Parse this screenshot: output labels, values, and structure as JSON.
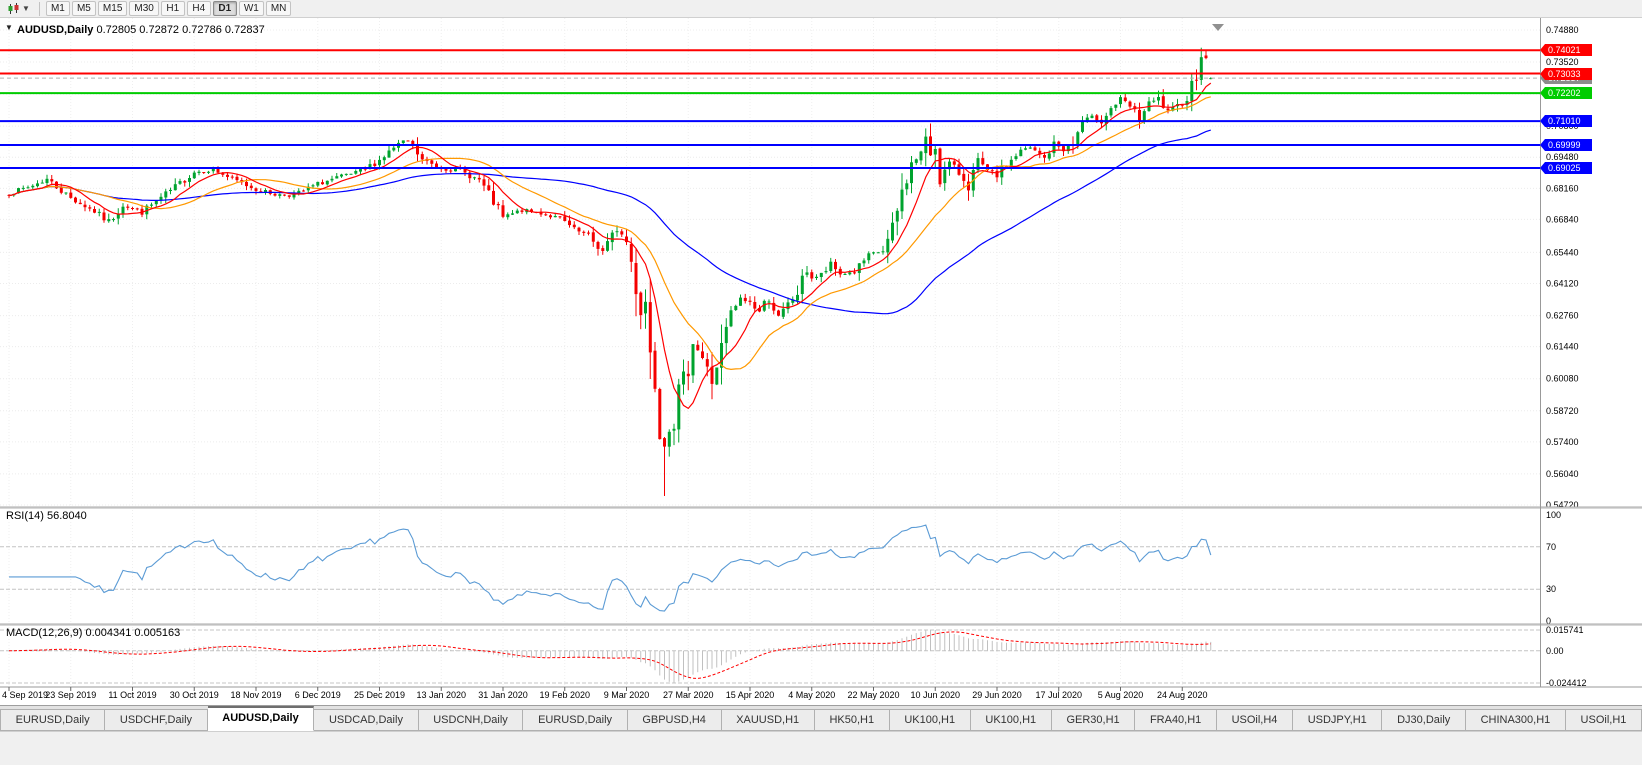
{
  "toolbar": {
    "timeframes": [
      "M1",
      "M5",
      "M15",
      "M30",
      "H1",
      "H4",
      "D1",
      "W1",
      "MN"
    ],
    "active": "D1"
  },
  "price_panel": {
    "symbol": "AUDUSD,Daily",
    "ohlc": "0.72805 0.72872 0.72786 0.72837"
  },
  "rsi_panel": {
    "label": "RSI(14) 56.8040"
  },
  "macd_panel": {
    "label": "MACD(12,26,9) 0.004341 0.005163"
  },
  "tabs": [
    "EURUSD,Daily",
    "USDCHF,Daily",
    "AUDUSD,Daily",
    "USDCAD,Daily",
    "USDCNH,Daily",
    "EURUSD,Daily",
    "GBPUSD,H4",
    "XAUUSD,H1",
    "HK50,H1",
    "UK100,H1",
    "UK100,H1",
    "GER30,H1",
    "FRA40,H1",
    "USOil,H4",
    "USDJPY,H1",
    "DJ30,Daily",
    "CHINA300,H1",
    "USOil,H1"
  ],
  "active_tab_index": 2,
  "chart_data": {
    "type": "candlestick",
    "title": "AUDUSD,Daily",
    "last_ohlc": [
      0.72805,
      0.72872,
      0.72786,
      0.72837
    ],
    "price_axis": {
      "min": 0.5472,
      "max": 0.7488,
      "ticks": [
        "0.74880",
        "0.73520",
        "0.72160",
        "0.70800",
        "0.69480",
        "0.68160",
        "0.66840",
        "0.65440",
        "0.64120",
        "0.62760",
        "0.61440",
        "0.60080",
        "0.58720",
        "0.57400",
        "0.56040",
        "0.54720"
      ]
    },
    "date_labels": [
      "4 Sep 2019",
      "23 Sep 2019",
      "11 Oct 2019",
      "30 Oct 2019",
      "18 Nov 2019",
      "6 Dec 2019",
      "25 Dec 2019",
      "13 Jan 2020",
      "31 Jan 2020",
      "19 Feb 2020",
      "9 Mar 2020",
      "27 Mar 2020",
      "15 Apr 2020",
      "4 May 2020",
      "22 May 2020",
      "10 Jun 2020",
      "29 Jun 2020",
      "17 Jul 2020",
      "5 Aug 2020",
      "24 Aug 2020"
    ],
    "candles_per_label": 13,
    "num_candles": 254,
    "seed": 7,
    "extreme_low": 0.551,
    "extreme_high": 0.7413,
    "hlines": [
      {
        "price": 0.74021,
        "label": "0.74021",
        "color": "#FF0000"
      },
      {
        "price": 0.73033,
        "label": "0.73033",
        "color": "#FF0000"
      },
      {
        "price": 0.72202,
        "label": "0.72202",
        "color": "#00CC00"
      },
      {
        "price": 0.7101,
        "label": "0.71010",
        "color": "#0000FF"
      },
      {
        "price": 0.69999,
        "label": "0.69999",
        "color": "#0000FF"
      },
      {
        "price": 0.69025,
        "label": "0.69025",
        "color": "#0000FF"
      }
    ],
    "bid": {
      "price": 0.72837,
      "label": "0.72837"
    },
    "price_path": [
      [
        0,
        0.6795
      ],
      [
        4,
        0.682
      ],
      [
        8,
        0.6855
      ],
      [
        13,
        0.6775
      ],
      [
        18,
        0.6718
      ],
      [
        21,
        0.6672
      ],
      [
        24,
        0.6745
      ],
      [
        28,
        0.6716
      ],
      [
        33,
        0.679
      ],
      [
        39,
        0.6885
      ],
      [
        43,
        0.6896
      ],
      [
        47,
        0.6855
      ],
      [
        52,
        0.6812
      ],
      [
        56,
        0.679
      ],
      [
        60,
        0.6786
      ],
      [
        65,
        0.6835
      ],
      [
        70,
        0.6866
      ],
      [
        74,
        0.6886
      ],
      [
        78,
        0.6936
      ],
      [
        82,
        0.7004
      ],
      [
        84,
        0.7016
      ],
      [
        87,
        0.6936
      ],
      [
        91,
        0.6902
      ],
      [
        95,
        0.689
      ],
      [
        99,
        0.685
      ],
      [
        102,
        0.6756
      ],
      [
        104,
        0.6692
      ],
      [
        108,
        0.6722
      ],
      [
        112,
        0.6712
      ],
      [
        116,
        0.6686
      ],
      [
        119,
        0.664
      ],
      [
        122,
        0.6612
      ],
      [
        125,
        0.6546
      ],
      [
        128,
        0.6646
      ],
      [
        130,
        0.659
      ],
      [
        131,
        0.6502
      ],
      [
        133,
        0.6292
      ],
      [
        134,
        0.634
      ],
      [
        135,
        0.6122
      ],
      [
        136,
        0.5996
      ],
      [
        137,
        0.5772
      ],
      [
        138,
        0.5742
      ],
      [
        139,
        0.5802
      ],
      [
        140,
        0.5832
      ],
      [
        141,
        0.5962
      ],
      [
        143,
        0.606
      ],
      [
        144,
        0.617
      ],
      [
        146,
        0.6096
      ],
      [
        148,
        0.5996
      ],
      [
        150,
        0.6136
      ],
      [
        152,
        0.6286
      ],
      [
        154,
        0.6346
      ],
      [
        156,
        0.6332
      ],
      [
        158,
        0.6292
      ],
      [
        160,
        0.636
      ],
      [
        162,
        0.6262
      ],
      [
        164,
        0.6322
      ],
      [
        166,
        0.6372
      ],
      [
        168,
        0.647
      ],
      [
        169,
        0.6436
      ],
      [
        171,
        0.6446
      ],
      [
        173,
        0.649
      ],
      [
        175,
        0.6452
      ],
      [
        178,
        0.6462
      ],
      [
        181,
        0.653
      ],
      [
        184,
        0.6552
      ],
      [
        186,
        0.6632
      ],
      [
        188,
        0.68
      ],
      [
        190,
        0.692
      ],
      [
        192,
        0.6966
      ],
      [
        193,
        0.7014
      ],
      [
        194,
        0.6962
      ],
      [
        195,
        0.7002
      ],
      [
        196,
        0.6852
      ],
      [
        198,
        0.6922
      ],
      [
        200,
        0.688
      ],
      [
        202,
        0.6832
      ],
      [
        204,
        0.693
      ],
      [
        206,
        0.6886
      ],
      [
        208,
        0.6872
      ],
      [
        210,
        0.6916
      ],
      [
        213,
        0.6976
      ],
      [
        215,
        0.6986
      ],
      [
        218,
        0.6942
      ],
      [
        220,
        0.7006
      ],
      [
        222,
        0.6982
      ],
      [
        224,
        0.7002
      ],
      [
        226,
        0.71
      ],
      [
        228,
        0.7116
      ],
      [
        230,
        0.7106
      ],
      [
        232,
        0.7156
      ],
      [
        234,
        0.7192
      ],
      [
        236,
        0.7162
      ],
      [
        238,
        0.7112
      ],
      [
        240,
        0.7176
      ],
      [
        242,
        0.7192
      ],
      [
        244,
        0.7136
      ],
      [
        246,
        0.7162
      ],
      [
        248,
        0.7206
      ],
      [
        249,
        0.7256
      ],
      [
        250,
        0.7312
      ],
      [
        251,
        0.74
      ],
      [
        252,
        0.7342
      ],
      [
        253,
        0.72837
      ]
    ],
    "moving_averages": [
      {
        "period": 55,
        "color": "#0000FF"
      },
      {
        "period": 20,
        "color": "#FF9900"
      },
      {
        "period": 8,
        "color": "#FF0000"
      }
    ],
    "rsi": {
      "period": 14,
      "value": "56.8040",
      "color": "#5B9BD5",
      "levels": [
        70,
        30
      ],
      "scale": [
        100,
        70,
        30,
        0
      ]
    },
    "macd": {
      "fast": 12,
      "slow": 26,
      "signal": 9,
      "hist_color": "#C0C0C0",
      "signal_color": "#FF0000"
    },
    "macd_axis": {
      "max": "0.015741",
      "zero": "0.00",
      "min": "-0.024412"
    },
    "colors": {
      "up": "#00A32E",
      "down": "#F40000",
      "grid": "#ECECEC",
      "vgrid": "#EFEFEF",
      "axis_line": "#999999",
      "text": "#000000",
      "bid_line": "#B0B0B0",
      "bid_tag": "#8C8C8C",
      "level_dash": "#C4C4C4",
      "shift_marker": "#909090"
    }
  }
}
